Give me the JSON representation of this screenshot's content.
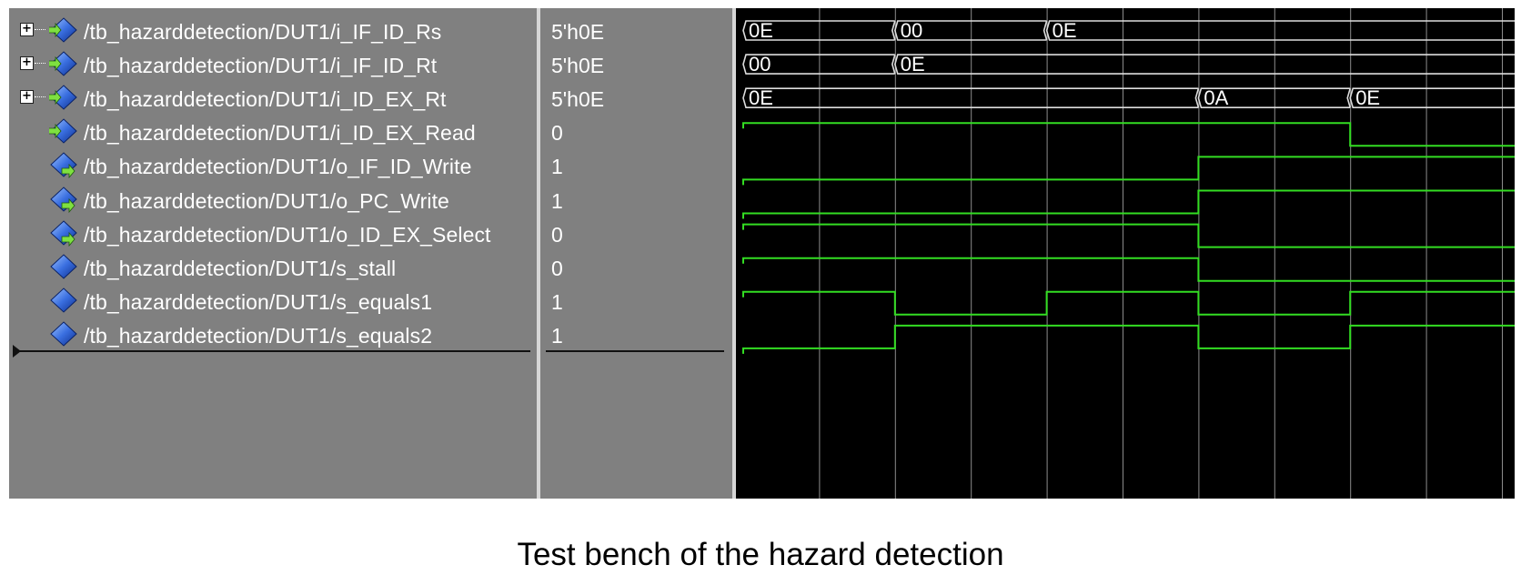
{
  "signals": [
    {
      "name": "/tb_hazarddetection/DUT1/i_IF_ID_Rs",
      "value": "5'h0E",
      "expandable": true,
      "direction": "in",
      "icon": "input-port-icon"
    },
    {
      "name": "/tb_hazarddetection/DUT1/i_IF_ID_Rt",
      "value": "5'h0E",
      "expandable": true,
      "direction": "in",
      "icon": "input-port-icon"
    },
    {
      "name": "/tb_hazarddetection/DUT1/i_ID_EX_Rt",
      "value": "5'h0E",
      "expandable": true,
      "direction": "in",
      "icon": "input-port-icon"
    },
    {
      "name": "/tb_hazarddetection/DUT1/i_ID_EX_Read",
      "value": "0",
      "expandable": false,
      "direction": "in",
      "icon": "input-port-icon"
    },
    {
      "name": "/tb_hazarddetection/DUT1/o_IF_ID_Write",
      "value": "1",
      "expandable": false,
      "direction": "out",
      "icon": "output-port-icon"
    },
    {
      "name": "/tb_hazarddetection/DUT1/o_PC_Write",
      "value": "1",
      "expandable": false,
      "direction": "out",
      "icon": "output-port-icon"
    },
    {
      "name": "/tb_hazarddetection/DUT1/o_ID_EX_Select",
      "value": "0",
      "expandable": false,
      "direction": "out",
      "icon": "output-port-icon"
    },
    {
      "name": "/tb_hazarddetection/DUT1/s_stall",
      "value": "0",
      "expandable": false,
      "direction": "internal",
      "icon": "signal-icon"
    },
    {
      "name": "/tb_hazarddetection/DUT1/s_equals1",
      "value": "1",
      "expandable": false,
      "direction": "internal",
      "icon": "signal-icon"
    },
    {
      "name": "/tb_hazarddetection/DUT1/s_equals2",
      "value": "1",
      "expandable": false,
      "direction": "internal",
      "icon": "signal-icon"
    }
  ],
  "waveforms": [
    {
      "kind": "bus",
      "segments": [
        {
          "t": 0,
          "label": "0E"
        },
        {
          "t": 2,
          "label": "00"
        },
        {
          "t": 4,
          "label": "0E"
        }
      ]
    },
    {
      "kind": "bus",
      "segments": [
        {
          "t": 0,
          "label": "00"
        },
        {
          "t": 2,
          "label": "0E"
        }
      ]
    },
    {
      "kind": "bus",
      "segments": [
        {
          "t": 0,
          "label": "0E"
        },
        {
          "t": 6,
          "label": "0A"
        },
        {
          "t": 8,
          "label": "0E"
        }
      ]
    },
    {
      "kind": "bit",
      "changes": [
        {
          "t": 0,
          "v": 1
        },
        {
          "t": 8,
          "v": 0
        }
      ]
    },
    {
      "kind": "bit",
      "changes": [
        {
          "t": 0,
          "v": 0
        },
        {
          "t": 6,
          "v": 1
        }
      ]
    },
    {
      "kind": "bit",
      "changes": [
        {
          "t": 0,
          "v": 0
        },
        {
          "t": 6,
          "v": 1
        }
      ]
    },
    {
      "kind": "bit",
      "changes": [
        {
          "t": 0,
          "v": 1
        },
        {
          "t": 6,
          "v": 0
        }
      ]
    },
    {
      "kind": "bit",
      "changes": [
        {
          "t": 0,
          "v": 1
        },
        {
          "t": 6,
          "v": 0
        }
      ]
    },
    {
      "kind": "bit",
      "changes": [
        {
          "t": 0,
          "v": 1
        },
        {
          "t": 2,
          "v": 0
        },
        {
          "t": 4,
          "v": 1
        },
        {
          "t": 6,
          "v": 0
        },
        {
          "t": 8,
          "v": 1
        }
      ]
    },
    {
      "kind": "bit",
      "changes": [
        {
          "t": 0,
          "v": 0
        },
        {
          "t": 2,
          "v": 1
        },
        {
          "t": 6,
          "v": 0
        },
        {
          "t": 8,
          "v": 1
        }
      ]
    }
  ],
  "colors": {
    "wave": "#33dd22",
    "bus_outline": "#dddddd",
    "grid": "#8c8c8c",
    "wave_bg": "#000000",
    "pane_bg": "#808080"
  },
  "caption": "Test bench of the hazard detection"
}
